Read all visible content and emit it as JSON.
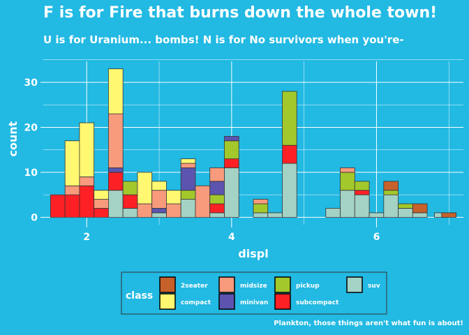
{
  "chart_data": {
    "type": "bar",
    "stacked": true,
    "title": "F is for Fire that burns down the whole town!",
    "subtitle": "U is for Uranium... bombs! N is for No survivors when you're-",
    "caption": "Plankton, those things aren't what fun is about!",
    "xlabel": "displ",
    "ylabel": "count",
    "xlim": [
      1.4,
      7.2
    ],
    "ylim": [
      -1.65,
      34.65
    ],
    "xticks": [
      2,
      4,
      6
    ],
    "yticks": [
      0,
      10,
      20,
      30
    ],
    "bin_width": 0.2,
    "grid": true,
    "legend_title": "class",
    "legend_position": "bottom",
    "classes": [
      {
        "name": "2seater",
        "color": "#c7612b"
      },
      {
        "name": "compact",
        "color": "#fff870"
      },
      {
        "name": "midsize",
        "color": "#f89a7c"
      },
      {
        "name": "minivan",
        "color": "#5c54ae"
      },
      {
        "name": "pickup",
        "color": "#a3c82b"
      },
      {
        "name": "subcompact",
        "color": "#fd2025"
      },
      {
        "name": "suv",
        "color": "#a4d2c5"
      }
    ],
    "bins": [
      {
        "x": 1.6,
        "counts": {
          "subcompact": 5
        }
      },
      {
        "x": 1.8,
        "counts": {
          "subcompact": 5,
          "midsize": 2,
          "compact": 10
        }
      },
      {
        "x": 2.0,
        "counts": {
          "subcompact": 7,
          "midsize": 2,
          "compact": 12
        }
      },
      {
        "x": 2.2,
        "counts": {
          "subcompact": 2,
          "midsize": 2,
          "compact": 2
        }
      },
      {
        "x": 2.4,
        "counts": {
          "suv": 6,
          "subcompact": 4,
          "minivan": 1,
          "midsize": 12,
          "compact": 10
        }
      },
      {
        "x": 2.6,
        "counts": {
          "suv": 2,
          "subcompact": 3,
          "pickup": 3
        }
      },
      {
        "x": 2.8,
        "counts": {
          "midsize": 3,
          "compact": 7
        }
      },
      {
        "x": 3.0,
        "counts": {
          "suv": 1,
          "minivan": 1,
          "midsize": 4,
          "compact": 2
        }
      },
      {
        "x": 3.2,
        "counts": {
          "midsize": 3,
          "compact": 3
        }
      },
      {
        "x": 3.4,
        "counts": {
          "suv": 4,
          "pickup": 2,
          "minivan": 5,
          "midsize": 1,
          "compact": 1
        }
      },
      {
        "x": 3.6,
        "counts": {
          "midsize": 7
        }
      },
      {
        "x": 3.8,
        "counts": {
          "suv": 1,
          "subcompact": 2,
          "pickup": 2,
          "minivan": 3,
          "midsize": 3
        }
      },
      {
        "x": 4.0,
        "counts": {
          "suv": 11,
          "subcompact": 2,
          "pickup": 4,
          "minivan": 1
        }
      },
      {
        "x": 4.4,
        "counts": {
          "suv": 1,
          "pickup": 2,
          "midsize": 1
        }
      },
      {
        "x": 4.6,
        "counts": {
          "suv": 1
        }
      },
      {
        "x": 4.8,
        "counts": {
          "suv": 12,
          "subcompact": 4,
          "pickup": 12
        }
      },
      {
        "x": 5.4,
        "counts": {
          "suv": 2
        }
      },
      {
        "x": 5.6,
        "counts": {
          "suv": 6,
          "pickup": 4,
          "midsize": 1
        }
      },
      {
        "x": 5.8,
        "counts": {
          "suv": 5,
          "subcompact": 1,
          "pickup": 2
        }
      },
      {
        "x": 6.0,
        "counts": {
          "suv": 1
        }
      },
      {
        "x": 6.2,
        "counts": {
          "suv": 5,
          "pickup": 1,
          "2seater": 2
        }
      },
      {
        "x": 6.4,
        "counts": {
          "suv": 2,
          "pickup": 1
        }
      },
      {
        "x": 6.6,
        "counts": {
          "suv": 1,
          "2seater": 2
        }
      },
      {
        "x": 6.9,
        "counts": {
          "suv": 1
        }
      },
      {
        "x": 7.0,
        "counts": {
          "2seater": 1
        }
      }
    ]
  }
}
